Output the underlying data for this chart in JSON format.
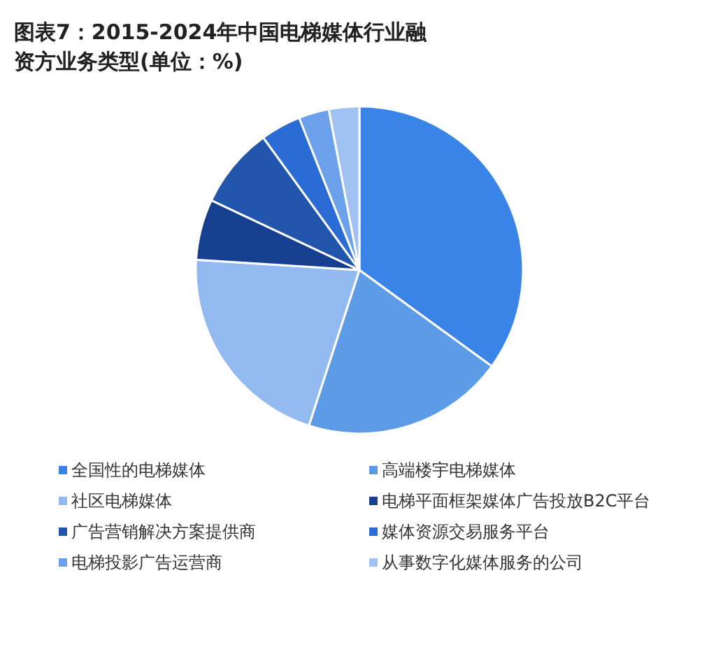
{
  "chart_data": {
    "type": "pie",
    "title": "图表7：2015-2024年中国电梯媒体行业融资方业务类型(单位：%)",
    "categories": [
      "全国性的电梯媒体",
      "高端楼宇电梯媒体",
      "社区电梯媒体",
      "电梯平面框架媒体广告投放B2C平台",
      "广告营销解决方案提供商",
      "媒体资源交易服务平台",
      "电梯投影广告运营商",
      "从事数字化媒体服务的公司"
    ],
    "values": [
      35,
      20,
      21,
      6,
      8,
      4,
      3,
      3
    ],
    "colors": [
      "#3a84e8",
      "#5d9be6",
      "#92b9f0",
      "#173f8f",
      "#2256ad",
      "#2a6bd6",
      "#6aa1ea",
      "#a0c2f2"
    ],
    "legend": "bottom"
  }
}
